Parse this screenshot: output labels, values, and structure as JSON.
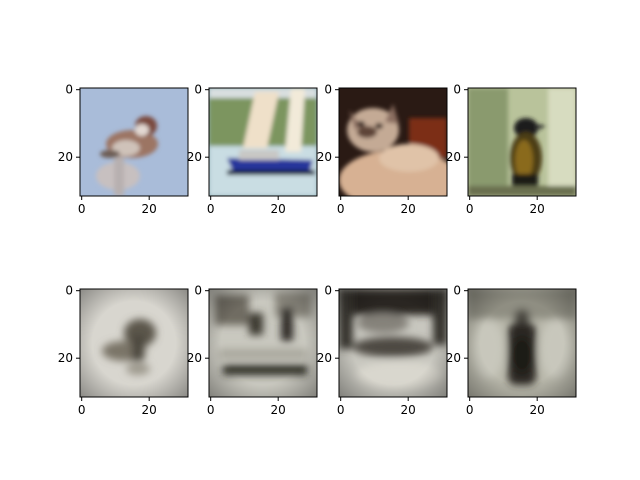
{
  "figure": {
    "rows": [
      {
        "panels": [
          {
            "scene": "sparrow",
            "x_ticks": [
              "0",
              "20"
            ],
            "y_ticks": [
              "0",
              "20"
            ]
          },
          {
            "scene": "sailboat",
            "x_ticks": [
              "0",
              "20"
            ],
            "y_ticks": [
              "0",
              "20"
            ]
          },
          {
            "scene": "cat",
            "x_ticks": [
              "0",
              "20"
            ],
            "y_ticks": [
              "0",
              "20"
            ]
          },
          {
            "scene": "black-bird",
            "x_ticks": [
              "0",
              "20"
            ],
            "y_ticks": [
              "0",
              "20"
            ]
          }
        ]
      },
      {
        "panels": [
          {
            "scene": "recon-sparrow",
            "x_ticks": [
              "0",
              "20"
            ],
            "y_ticks": [
              "0",
              "20"
            ]
          },
          {
            "scene": "recon-sailboat",
            "x_ticks": [
              "0",
              "20"
            ],
            "y_ticks": [
              "0",
              "20"
            ]
          },
          {
            "scene": "recon-cat",
            "x_ticks": [
              "0",
              "20"
            ],
            "y_ticks": [
              "0",
              "20"
            ]
          },
          {
            "scene": "recon-black-bird",
            "x_ticks": [
              "0",
              "20"
            ],
            "y_ticks": [
              "0",
              "20"
            ]
          }
        ]
      }
    ]
  }
}
